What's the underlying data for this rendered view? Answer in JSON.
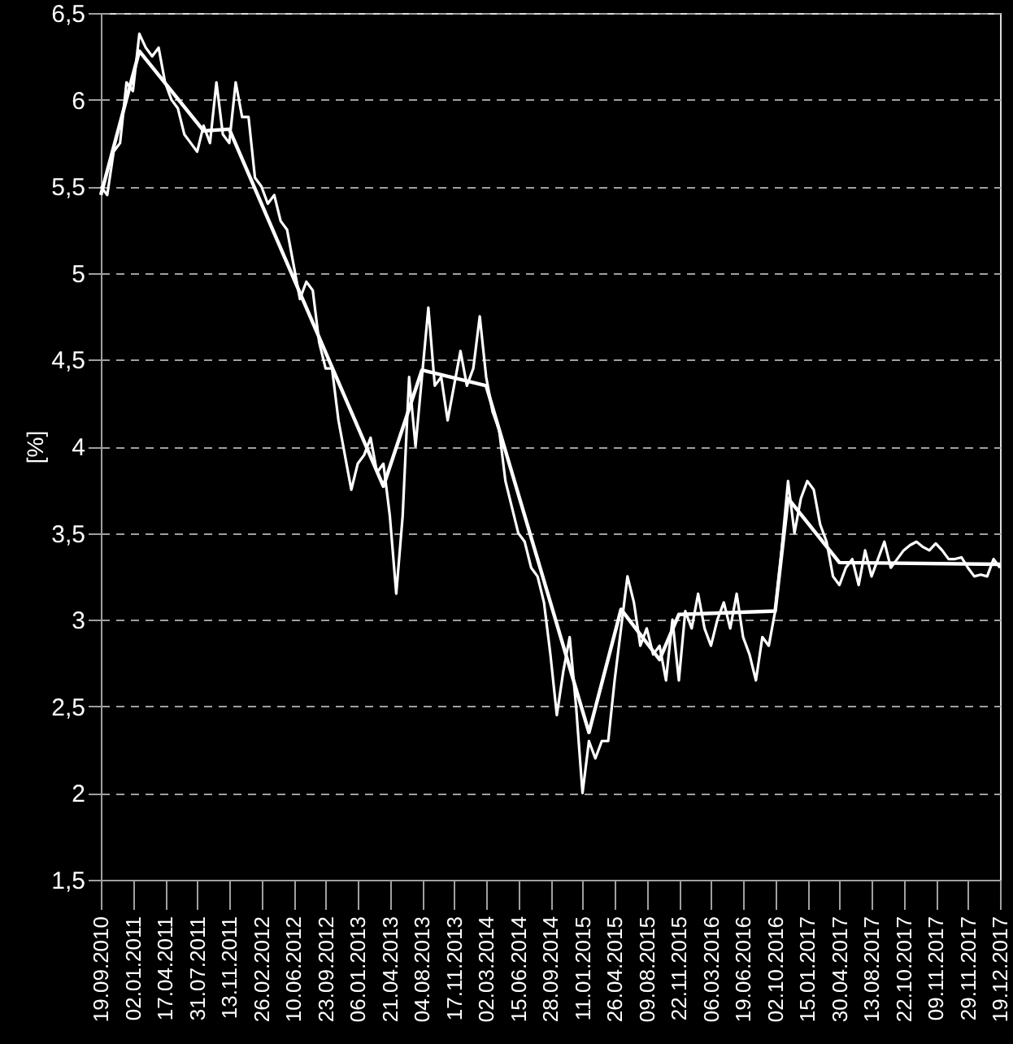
{
  "chart_data": {
    "type": "line",
    "ylabel": "[%]",
    "categories": [
      "19.09.2010",
      null,
      null,
      null,
      null,
      "02.01.2011",
      null,
      null,
      null,
      null,
      "17.04.2011",
      null,
      null,
      null,
      null,
      "31.07.2011",
      null,
      null,
      null,
      null,
      "13.11.2011",
      null,
      null,
      null,
      null,
      "26.02.2012",
      null,
      null,
      null,
      null,
      "10.06.2012",
      null,
      null,
      null,
      null,
      "23.09.2012",
      null,
      null,
      null,
      null,
      "06.01.2013",
      null,
      null,
      null,
      null,
      "21.04.2013",
      null,
      null,
      null,
      null,
      "04.08.2013",
      null,
      null,
      null,
      null,
      "17.11.2013",
      null,
      null,
      null,
      null,
      "02.03.2014",
      null,
      null,
      null,
      null,
      "15.06.2014",
      null,
      null,
      null,
      null,
      "28.09.2014",
      null,
      null,
      null,
      null,
      "11.01.2015",
      null,
      null,
      null,
      null,
      "26.04.2015",
      null,
      null,
      null,
      null,
      "09.08.2015",
      null,
      null,
      null,
      null,
      "22.11.2015",
      null,
      null,
      null,
      null,
      "06.03.2016",
      null,
      null,
      null,
      null,
      "19.06.2016",
      null,
      null,
      null,
      null,
      "02.10.2016",
      null,
      null,
      null,
      null,
      "15.01.2017",
      null,
      null,
      null,
      null,
      "30.04.2017",
      null,
      null,
      null,
      null,
      "13.08.2017",
      null,
      null,
      null,
      null,
      "22.10.2017",
      null,
      null,
      null,
      null,
      "09.11.2017",
      null,
      null,
      null,
      null,
      "29.11.2017",
      null,
      null,
      null,
      null,
      "19.12.2017"
    ],
    "ylim": [
      1.5,
      6.5
    ],
    "yticks": [
      {
        "value": 1.5,
        "label": "1,5"
      },
      {
        "value": 2,
        "label": "2"
      },
      {
        "value": 2.5,
        "label": "2,5"
      },
      {
        "value": 3,
        "label": "3"
      },
      {
        "value": 3.5,
        "label": "3,5"
      },
      {
        "value": 4,
        "label": "4"
      },
      {
        "value": 4.5,
        "label": "4,5"
      },
      {
        "value": 5,
        "label": "5"
      },
      {
        "value": 5.5,
        "label": "5,5"
      },
      {
        "value": 6,
        "label": "6"
      },
      {
        "value": 6.5,
        "label": "6,5"
      }
    ],
    "grid": "y",
    "marker": "none",
    "line_style": "solid",
    "series": [
      {
        "color": "#ffffff",
        "values": [
          5.5,
          5.45,
          5.7,
          5.75,
          6.1,
          6.05,
          6.38,
          6.3,
          6.25,
          6.3,
          6.1,
          6.0,
          5.95,
          5.8,
          5.75,
          5.7,
          5.85,
          5.75,
          6.1,
          5.8,
          5.75,
          6.1,
          5.9,
          5.9,
          5.55,
          5.5,
          5.4,
          5.45,
          5.3,
          5.25,
          5.05,
          4.85,
          4.95,
          4.9,
          4.6,
          4.45,
          4.45,
          4.15,
          3.95,
          3.75,
          3.9,
          3.95,
          4.05,
          3.85,
          3.9,
          3.6,
          3.15,
          3.6,
          4.4,
          4.0,
          4.4,
          4.8,
          4.35,
          4.4,
          4.15,
          4.35,
          4.55,
          4.35,
          4.45,
          4.75,
          4.4,
          4.2,
          4.1,
          3.8,
          3.65,
          3.5,
          3.45,
          3.3,
          3.25,
          3.1,
          2.8,
          2.45,
          2.7,
          2.9,
          2.5,
          2.0,
          2.3,
          2.2,
          2.3,
          2.3,
          2.65,
          2.95,
          3.25,
          3.1,
          2.85,
          2.95,
          2.8,
          2.85,
          2.65,
          3.0,
          2.65,
          3.05,
          2.95,
          3.15,
          2.95,
          2.85,
          3.0,
          3.1,
          2.95,
          3.15,
          2.9,
          2.8,
          2.65,
          2.9,
          2.85,
          3.05,
          3.4,
          3.8,
          3.5,
          3.7,
          3.8,
          3.75,
          3.55,
          3.45,
          3.25,
          3.2,
          3.3,
          3.35,
          3.2,
          3.4,
          3.25,
          3.35,
          3.45,
          3.3,
          3.35,
          3.4,
          3.43,
          3.45,
          3.42,
          3.4,
          3.44,
          3.4,
          3.35,
          3.35,
          3.36,
          3.3,
          3.25,
          3.26,
          3.25,
          3.35,
          3.3
        ]
      },
      {
        "color": "#ffffff",
        "values": [
          5.45,
          null,
          null,
          null,
          null,
          null,
          6.28,
          null,
          null,
          null,
          null,
          null,
          null,
          null,
          null,
          null,
          5.82,
          null,
          null,
          null,
          5.83,
          null,
          null,
          null,
          null,
          null,
          null,
          null,
          null,
          null,
          null,
          null,
          null,
          null,
          null,
          null,
          null,
          null,
          null,
          null,
          null,
          null,
          null,
          null,
          3.77,
          null,
          null,
          null,
          null,
          null,
          4.44,
          null,
          null,
          null,
          null,
          null,
          null,
          null,
          null,
          null,
          4.35,
          null,
          null,
          null,
          null,
          null,
          null,
          null,
          null,
          null,
          null,
          null,
          null,
          null,
          null,
          null,
          2.35,
          null,
          null,
          null,
          null,
          3.06,
          null,
          null,
          null,
          null,
          null,
          2.77,
          null,
          null,
          3.03,
          null,
          null,
          null,
          null,
          null,
          null,
          null,
          null,
          null,
          null,
          null,
          null,
          null,
          null,
          3.05,
          null,
          3.7,
          null,
          null,
          null,
          null,
          null,
          null,
          null,
          3.33,
          null,
          null,
          null,
          null,
          null,
          null,
          null,
          null,
          null,
          null,
          null,
          null,
          null,
          null,
          null,
          null,
          null,
          null,
          null,
          null,
          null,
          null,
          null,
          null,
          3.32
        ]
      }
    ]
  }
}
